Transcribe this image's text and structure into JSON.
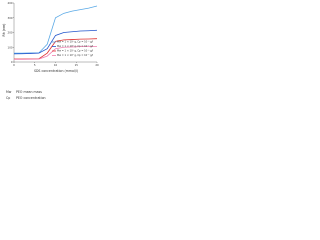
{
  "chart_data": {
    "type": "line",
    "y_label": "Rh (nm)",
    "x_label": "SDS concentration (mmol/l)",
    "x": [
      0,
      2,
      4,
      6,
      8,
      10,
      12,
      14,
      16,
      18,
      20
    ],
    "xlim": [
      0,
      20
    ],
    "xticks": [
      0,
      5,
      10,
      15,
      20
    ],
    "ylim": [
      0,
      400
    ],
    "yticks": [
      0,
      100,
      200,
      300,
      400
    ],
    "legend": "lower right",
    "series": [
      {
        "name": "Mw = 1 × 10⁶ g, Cp = 10⁻³ g/l",
        "color": "#5aa9e6",
        "values": [
          60,
          60,
          62,
          62,
          120,
          300,
          330,
          345,
          355,
          365,
          380
        ]
      },
      {
        "name": "Mw = 1 × 10⁶ g, Cp = 10⁻² g/l",
        "color": "#2255cc",
        "values": [
          55,
          56,
          58,
          60,
          90,
          180,
          200,
          205,
          210,
          212,
          215
        ]
      },
      {
        "name": "Mw = 1 × 10⁵ g, Cp = 10⁻³ g/l",
        "color": "#e03030",
        "values": [
          20,
          20,
          21,
          22,
          60,
          140,
          150,
          152,
          155,
          156,
          158
        ]
      },
      {
        "name": "Mw = 1 × 10⁵ g, Cp = 10⁻² g/l",
        "color": "#f080b0",
        "values": [
          18,
          18,
          19,
          20,
          40,
          90,
          100,
          102,
          104,
          105,
          106
        ]
      }
    ],
    "notes": [
      {
        "symbol": "Mw",
        "text": "PEO mean mass"
      },
      {
        "symbol": "Cp",
        "text": "PEO concentration"
      }
    ]
  }
}
